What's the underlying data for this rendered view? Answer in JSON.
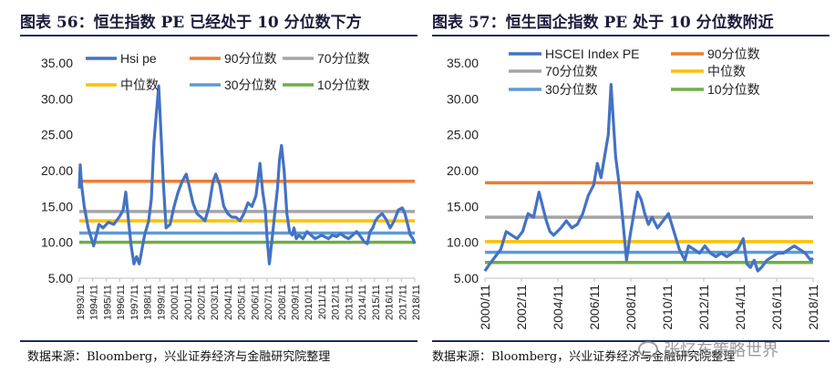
{
  "source_text": "数据来源：Bloomberg，兴业证券经济与金融研究院整理",
  "watermark": {
    "text": "张忆东策略世界",
    "icon": "wechat-icon"
  },
  "chart_data": [
    {
      "type": "line",
      "title": "图表 56：恒生指数 PE 已经处于 10 分位数下方",
      "ylim": [
        5,
        35
      ],
      "yticks": [
        "35.00",
        "30.00",
        "25.00",
        "20.00",
        "15.00",
        "10.00",
        "5.00"
      ],
      "ytick_values": [
        35,
        30,
        25,
        20,
        15,
        10,
        5
      ],
      "xlim": [
        1993.833,
        2018.833
      ],
      "xticks": [
        "1993/11",
        "1994/11",
        "1995/11",
        "1996/11",
        "1997/11",
        "1998/11",
        "1999/11",
        "2000/11",
        "2001/11",
        "2002/11",
        "2003/11",
        "2004/11",
        "2005/11",
        "2006/11",
        "2007/11",
        "2008/11",
        "2009/11",
        "2010/11",
        "2011/11",
        "2012/11",
        "2013/11",
        "2014/11",
        "2015/11",
        "2016/11",
        "2017/11",
        "2018/11"
      ],
      "series": [
        {
          "name": "Hsi pe",
          "color": "#4472c4",
          "kind": "line",
          "x": [
            1993.83,
            1993.9,
            1994.0,
            1994.2,
            1994.5,
            1994.9,
            1995.3,
            1995.6,
            1996.0,
            1996.4,
            1996.8,
            1997.1,
            1997.3,
            1997.5,
            1997.7,
            1997.9,
            1998.1,
            1998.3,
            1998.5,
            1998.7,
            1999.0,
            1999.2,
            1999.4,
            1999.6,
            1999.75,
            1999.9,
            2000.1,
            2000.3,
            2000.6,
            2000.9,
            2001.2,
            2001.5,
            2001.8,
            2002.0,
            2002.3,
            2002.6,
            2002.9,
            2003.2,
            2003.5,
            2003.8,
            2004.0,
            2004.3,
            2004.6,
            2004.9,
            2005.2,
            2005.5,
            2005.8,
            2006.1,
            2006.4,
            2006.7,
            2007.0,
            2007.3,
            2007.5,
            2007.7,
            2007.83,
            2008.0,
            2008.2,
            2008.4,
            2008.6,
            2008.75,
            2008.9,
            2009.1,
            2009.3,
            2009.5,
            2009.7,
            2009.83,
            2010.0,
            2010.2,
            2010.5,
            2010.8,
            2011.1,
            2011.4,
            2011.7,
            2011.9,
            2012.1,
            2012.4,
            2012.7,
            2013.0,
            2013.3,
            2013.6,
            2013.9,
            2014.2,
            2014.5,
            2014.8,
            2015.1,
            2015.3,
            2015.5,
            2015.7,
            2015.9,
            2016.1,
            2016.4,
            2016.7,
            2017.0,
            2017.3,
            2017.6,
            2017.9,
            2018.1,
            2018.3,
            2018.5,
            2018.7,
            2018.83
          ],
          "values": [
            17.5,
            20.8,
            18.0,
            15.0,
            12.0,
            9.5,
            12.5,
            12.0,
            12.8,
            12.5,
            13.5,
            14.5,
            17.0,
            13.0,
            9.5,
            7.0,
            8.0,
            7.0,
            9.0,
            11.0,
            13.0,
            16.0,
            24.0,
            28.5,
            31.8,
            26.0,
            18.0,
            12.0,
            12.5,
            15.0,
            17.0,
            18.5,
            19.5,
            18.0,
            15.5,
            14.0,
            13.5,
            13.0,
            15.0,
            18.5,
            19.5,
            18.0,
            15.0,
            14.0,
            13.5,
            13.5,
            13.0,
            14.0,
            15.5,
            15.0,
            16.5,
            21.0,
            17.0,
            14.5,
            10.5,
            7.0,
            10.5,
            14.0,
            17.5,
            21.5,
            23.5,
            20.0,
            14.0,
            11.5,
            11.0,
            12.0,
            10.5,
            11.0,
            10.5,
            11.5,
            11.0,
            10.5,
            10.8,
            11.0,
            10.8,
            10.5,
            11.0,
            10.8,
            11.2,
            10.8,
            10.5,
            11.0,
            11.5,
            10.8,
            10.0,
            9.8,
            11.5,
            12.0,
            13.0,
            13.5,
            14.0,
            13.2,
            12.0,
            13.0,
            14.5,
            14.8,
            14.0,
            12.5,
            11.0,
            10.5,
            9.8
          ]
        },
        {
          "name": "90分位数",
          "color": "#ed7d31",
          "kind": "hline",
          "value": 18.5
        },
        {
          "name": "70分位数",
          "color": "#a5a5a5",
          "kind": "hline",
          "value": 14.3
        },
        {
          "name": "中位数",
          "color": "#ffc000",
          "kind": "hline",
          "value": 13.0
        },
        {
          "name": "30分位数",
          "color": "#5b9bd5",
          "kind": "hline",
          "value": 11.3
        },
        {
          "name": "10分位数",
          "color": "#70ad47",
          "kind": "hline",
          "value": 10.0
        }
      ]
    },
    {
      "type": "line",
      "title": "图表 57：恒生国企指数 PE 处于 10 分位数附近",
      "ylim": [
        5,
        35
      ],
      "yticks": [
        "35.00",
        "30.00",
        "25.00",
        "20.00",
        "15.00",
        "10.00",
        "5.00"
      ],
      "ytick_values": [
        35,
        30,
        25,
        20,
        15,
        10,
        5
      ],
      "xlim": [
        2000.833,
        2018.833
      ],
      "xticks": [
        "2000/11",
        "2002/11",
        "2004/11",
        "2006/11",
        "2008/11",
        "2010/11",
        "2012/11",
        "2014/11",
        "2016/11",
        "2018/11"
      ],
      "series": [
        {
          "name": "HSCEI Index PE",
          "color": "#4472c4",
          "kind": "line",
          "x": [
            2000.83,
            2001.1,
            2001.4,
            2001.7,
            2002.0,
            2002.3,
            2002.6,
            2002.9,
            2003.2,
            2003.5,
            2003.8,
            2004.0,
            2004.2,
            2004.4,
            2004.6,
            2004.8,
            2005.0,
            2005.3,
            2005.6,
            2005.9,
            2006.2,
            2006.5,
            2006.8,
            2007.0,
            2007.2,
            2007.4,
            2007.6,
            2007.75,
            2007.85,
            2008.0,
            2008.2,
            2008.4,
            2008.6,
            2008.8,
            2009.0,
            2009.2,
            2009.4,
            2009.6,
            2009.8,
            2010.0,
            2010.3,
            2010.6,
            2010.9,
            2011.2,
            2011.5,
            2011.8,
            2012.0,
            2012.3,
            2012.6,
            2012.9,
            2013.2,
            2013.5,
            2013.8,
            2014.1,
            2014.4,
            2014.7,
            2015.0,
            2015.2,
            2015.4,
            2015.6,
            2015.8,
            2016.0,
            2016.3,
            2016.6,
            2016.9,
            2017.2,
            2017.5,
            2017.8,
            2018.1,
            2018.4,
            2018.7,
            2018.83
          ],
          "values": [
            6.0,
            7.0,
            8.0,
            9.0,
            11.5,
            11.0,
            10.5,
            11.5,
            14.0,
            13.5,
            17.0,
            15.0,
            13.0,
            11.5,
            11.0,
            11.5,
            12.0,
            13.0,
            12.0,
            12.5,
            14.0,
            16.5,
            18.0,
            21.0,
            19.0,
            22.0,
            25.0,
            32.0,
            28.0,
            22.0,
            18.0,
            13.0,
            7.5,
            11.0,
            14.0,
            17.0,
            16.0,
            14.0,
            12.5,
            13.5,
            12.0,
            13.0,
            14.0,
            11.5,
            9.0,
            7.5,
            9.5,
            9.0,
            8.5,
            9.5,
            8.5,
            8.0,
            8.5,
            8.0,
            8.5,
            9.0,
            10.5,
            7.0,
            6.5,
            7.5,
            6.0,
            6.5,
            7.5,
            8.0,
            8.5,
            8.5,
            9.0,
            9.5,
            9.0,
            8.5,
            7.5,
            7.8
          ]
        },
        {
          "name": "90分位数",
          "color": "#ed7d31",
          "kind": "hline",
          "value": 18.3
        },
        {
          "name": "70分位数",
          "color": "#a5a5a5",
          "kind": "hline",
          "value": 13.5
        },
        {
          "name": "中位数",
          "color": "#ffc000",
          "kind": "hline",
          "value": 10.1
        },
        {
          "name": "30分位数",
          "color": "#5b9bd5",
          "kind": "hline",
          "value": 8.6
        },
        {
          "name": "10分位数",
          "color": "#70ad47",
          "kind": "hline",
          "value": 7.2
        }
      ]
    }
  ]
}
